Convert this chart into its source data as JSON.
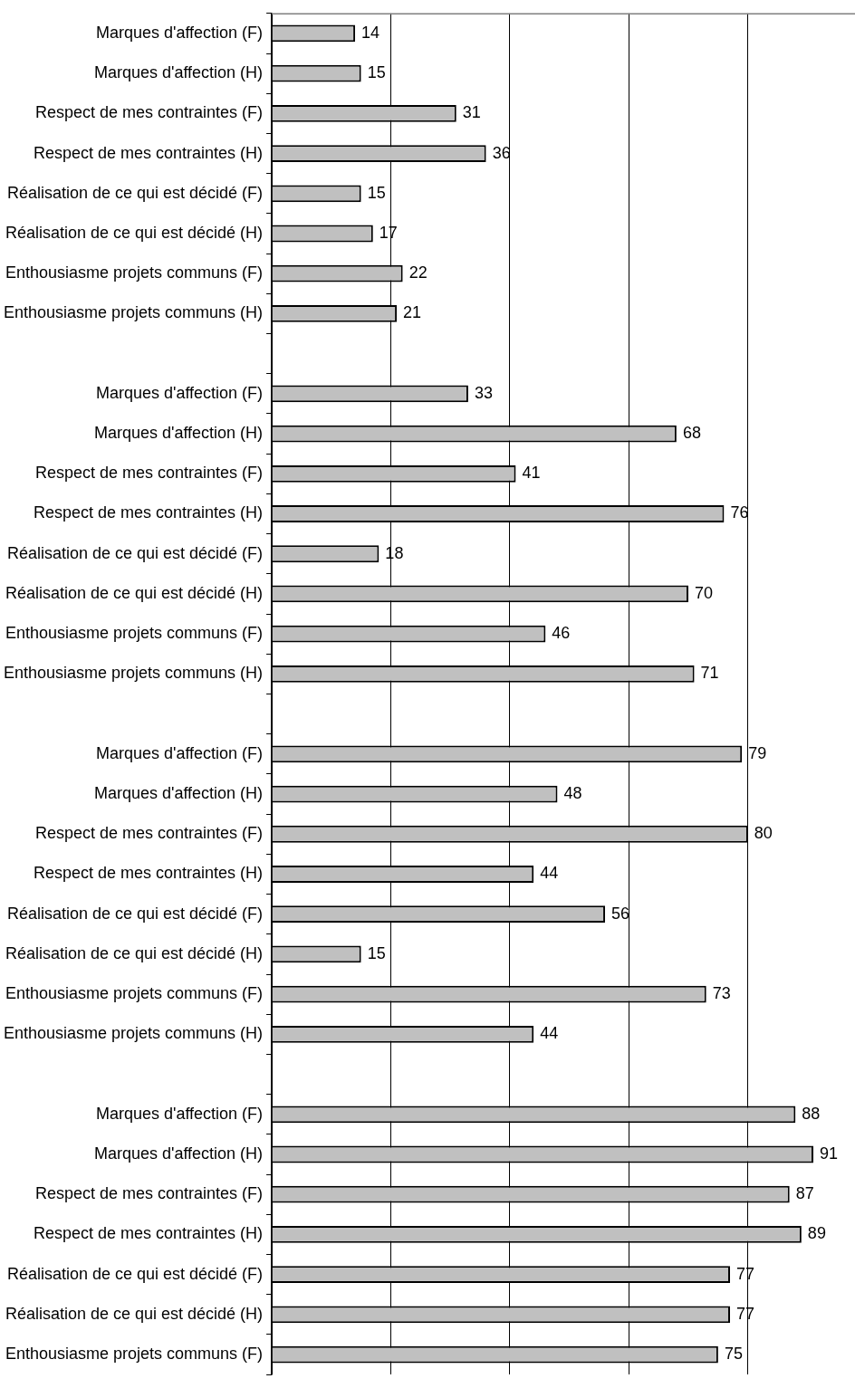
{
  "chart_data": {
    "type": "bar",
    "orientation": "horizontal",
    "categories": [
      "Marques d'affection (F)",
      "Marques d'affection (H)",
      "Respect de mes contraintes (F)",
      "Respect de mes contraintes (H)",
      "Réalisation de ce qui est décidé (F)",
      "Réalisation de ce qui est décidé (H)",
      "Enthousiasme projets communs (F)",
      "Enthousiasme projets communs (H)",
      null,
      "Marques d'affection (F)",
      "Marques d'affection (H)",
      "Respect de mes contraintes (F)",
      "Respect de mes contraintes (H)",
      "Réalisation de ce qui est décidé (F)",
      "Réalisation de ce qui est décidé (H)",
      "Enthousiasme projets communs (F)",
      "Enthousiasme projets communs (H)",
      null,
      "Marques d'affection (F)",
      "Marques d'affection (H)",
      "Respect de mes contraintes (F)",
      "Respect de mes contraintes (H)",
      "Réalisation de ce qui est décidé (F)",
      "Réalisation de ce qui est décidé (H)",
      "Enthousiasme projets communs (F)",
      "Enthousiasme projets communs (H)",
      null,
      "Marques d'affection (F)",
      "Marques d'affection (H)",
      "Respect de mes contraintes (F)",
      "Respect de mes contraintes (H)",
      "Réalisation de ce qui est décidé (F)",
      "Réalisation de ce qui est décidé (H)",
      "Enthousiasme projets communs (F)"
    ],
    "values": [
      14,
      15,
      31,
      36,
      15,
      17,
      22,
      21,
      null,
      33,
      68,
      41,
      76,
      18,
      70,
      46,
      71,
      null,
      79,
      48,
      80,
      44,
      56,
      15,
      73,
      44,
      null,
      88,
      91,
      87,
      89,
      77,
      77,
      75
    ],
    "color": "#c0c0c0",
    "xlim": [
      0,
      98
    ],
    "xticks": [
      {
        "value": 0,
        "label": null
      },
      {
        "value": 20,
        "label": null
      },
      {
        "value": 40,
        "label": null
      },
      {
        "value": 60,
        "label": null
      },
      {
        "value": 80,
        "label": null
      }
    ],
    "grid": "x",
    "tick_labels": "y",
    "data_labels": true
  }
}
